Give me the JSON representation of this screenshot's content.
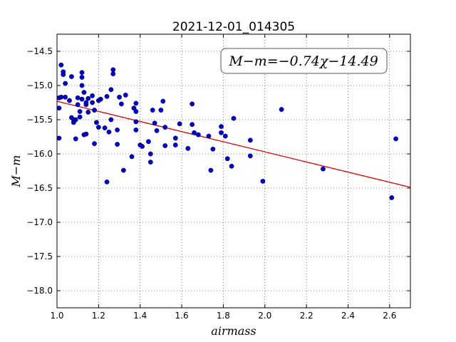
{
  "chart_data": {
    "type": "scatter",
    "title": "2021-12-01_014305",
    "xlabel": "airmass",
    "ylabel": "M−m",
    "xlim": [
      1.0,
      2.7
    ],
    "ylim": [
      -18.25,
      -14.25
    ],
    "x_ticks": [
      1.0,
      1.2,
      1.4,
      1.6,
      1.8,
      2.0,
      2.2,
      2.4,
      2.6
    ],
    "x_tick_labels": [
      "1.0",
      "1.2",
      "1.4",
      "1.6",
      "1.8",
      "2.0",
      "2.2",
      "2.4",
      "2.6"
    ],
    "y_ticks": [
      -14.5,
      -15.0,
      -15.5,
      -16.0,
      -16.5,
      -17.0,
      -17.5,
      -18.0
    ],
    "y_tick_labels": [
      "−14.5",
      "−15.0",
      "−15.5",
      "−16.0",
      "−16.5",
      "−17.0",
      "−17.5",
      "−18.0"
    ],
    "grid": true,
    "annotation": "M−m=−0.74χ−14.49",
    "fit": {
      "slope": -0.74,
      "intercept": -14.49,
      "color": "#dd0000"
    },
    "point_color": "#0000cc",
    "points": [
      [
        1.01,
        -15.33
      ],
      [
        1.01,
        -15.77
      ],
      [
        1.01,
        -15.18
      ],
      [
        1.02,
        -15.17
      ],
      [
        1.02,
        -14.7
      ],
      [
        1.03,
        -14.8
      ],
      [
        1.03,
        -14.84
      ],
      [
        1.04,
        -14.97
      ],
      [
        1.04,
        -15.17
      ],
      [
        1.06,
        -15.22
      ],
      [
        1.07,
        -15.47
      ],
      [
        1.07,
        -14.87
      ],
      [
        1.08,
        -15.5
      ],
      [
        1.08,
        -15.54
      ],
      [
        1.09,
        -15.78
      ],
      [
        1.09,
        -15.5
      ],
      [
        1.1,
        -15.18
      ],
      [
        1.1,
        -15.28
      ],
      [
        1.11,
        -15.38
      ],
      [
        1.11,
        -15.46
      ],
      [
        1.12,
        -15.2
      ],
      [
        1.12,
        -15.0
      ],
      [
        1.12,
        -14.81
      ],
      [
        1.12,
        -14.88
      ],
      [
        1.13,
        -15.1
      ],
      [
        1.13,
        -15.72
      ],
      [
        1.14,
        -15.71
      ],
      [
        1.14,
        -15.28
      ],
      [
        1.14,
        -15.25
      ],
      [
        1.15,
        -15.19
      ],
      [
        1.15,
        -15.39
      ],
      [
        1.17,
        -15.15
      ],
      [
        1.17,
        -15.25
      ],
      [
        1.18,
        -15.85
      ],
      [
        1.18,
        -15.36
      ],
      [
        1.19,
        -15.54
      ],
      [
        1.2,
        -15.61
      ],
      [
        1.2,
        -15.22
      ],
      [
        1.21,
        -15.2
      ],
      [
        1.23,
        -15.62
      ],
      [
        1.24,
        -16.41
      ],
      [
        1.24,
        -15.16
      ],
      [
        1.25,
        -15.68
      ],
      [
        1.26,
        -15.5
      ],
      [
        1.26,
        -15.06
      ],
      [
        1.27,
        -14.77
      ],
      [
        1.27,
        -14.83
      ],
      [
        1.29,
        -15.86
      ],
      [
        1.29,
        -15.65
      ],
      [
        1.3,
        -15.17
      ],
      [
        1.31,
        -15.27
      ],
      [
        1.32,
        -16.24
      ],
      [
        1.33,
        -15.14
      ],
      [
        1.36,
        -16.04
      ],
      [
        1.37,
        -15.33
      ],
      [
        1.38,
        -15.26
      ],
      [
        1.38,
        -15.38
      ],
      [
        1.38,
        -15.53
      ],
      [
        1.38,
        -15.65
      ],
      [
        1.4,
        -15.87
      ],
      [
        1.41,
        -15.89
      ],
      [
        1.44,
        -15.82
      ],
      [
        1.45,
        -16.12
      ],
      [
        1.45,
        -16.0
      ],
      [
        1.46,
        -15.36
      ],
      [
        1.47,
        -15.55
      ],
      [
        1.48,
        -15.66
      ],
      [
        1.5,
        -15.36
      ],
      [
        1.51,
        -15.23
      ],
      [
        1.52,
        -15.61
      ],
      [
        1.52,
        -15.88
      ],
      [
        1.57,
        -15.87
      ],
      [
        1.57,
        -15.77
      ],
      [
        1.59,
        -15.56
      ],
      [
        1.63,
        -15.92
      ],
      [
        1.65,
        -15.27
      ],
      [
        1.65,
        -15.57
      ],
      [
        1.66,
        -15.69
      ],
      [
        1.68,
        -15.72
      ],
      [
        1.73,
        -15.74
      ],
      [
        1.74,
        -16.24
      ],
      [
        1.75,
        -15.93
      ],
      [
        1.79,
        -15.6
      ],
      [
        1.79,
        -15.69
      ],
      [
        1.81,
        -15.74
      ],
      [
        1.82,
        -16.07
      ],
      [
        1.84,
        -16.18
      ],
      [
        1.85,
        -15.48
      ],
      [
        1.93,
        -15.8
      ],
      [
        1.93,
        -16.03
      ],
      [
        1.99,
        -16.4
      ],
      [
        2.08,
        -15.35
      ],
      [
        2.28,
        -16.22
      ],
      [
        2.61,
        -16.64
      ],
      [
        2.63,
        -15.78
      ]
    ]
  }
}
